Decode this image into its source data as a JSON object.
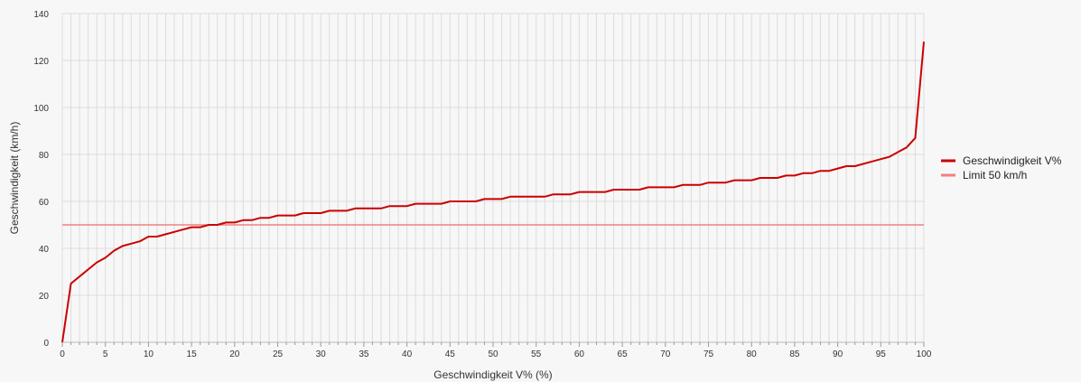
{
  "chart_data": {
    "type": "line",
    "title": "",
    "xlabel": "Geschwindigkeit V% (%)",
    "ylabel": "Geschwindigkeit (km/h)",
    "xlim": [
      0,
      100
    ],
    "ylim": [
      0,
      140
    ],
    "x_ticks": [
      0,
      5,
      10,
      15,
      20,
      25,
      30,
      35,
      40,
      45,
      50,
      55,
      60,
      65,
      70,
      75,
      80,
      85,
      90,
      95,
      100
    ],
    "y_ticks": [
      0,
      20,
      40,
      60,
      80,
      100,
      120,
      140
    ],
    "grid": true,
    "legend_position": "right",
    "series": [
      {
        "name": "Geschwindigkeit V%",
        "color": "#cc0000",
        "x": [
          0,
          1,
          2,
          3,
          4,
          5,
          6,
          7,
          8,
          9,
          10,
          11,
          12,
          13,
          14,
          15,
          16,
          17,
          18,
          19,
          20,
          21,
          22,
          23,
          24,
          25,
          26,
          27,
          28,
          29,
          30,
          31,
          32,
          33,
          34,
          35,
          36,
          37,
          38,
          39,
          40,
          41,
          42,
          43,
          44,
          45,
          46,
          47,
          48,
          49,
          50,
          51,
          52,
          53,
          54,
          55,
          56,
          57,
          58,
          59,
          60,
          61,
          62,
          63,
          64,
          65,
          66,
          67,
          68,
          69,
          70,
          71,
          72,
          73,
          74,
          75,
          76,
          77,
          78,
          79,
          80,
          81,
          82,
          83,
          84,
          85,
          86,
          87,
          88,
          89,
          90,
          91,
          92,
          93,
          94,
          95,
          96,
          97,
          98,
          99,
          100
        ],
        "values": [
          0,
          25,
          28,
          31,
          34,
          36,
          39,
          41,
          42,
          43,
          45,
          45,
          46,
          47,
          48,
          49,
          49,
          50,
          50,
          51,
          51,
          52,
          52,
          53,
          53,
          54,
          54,
          54,
          55,
          55,
          55,
          56,
          56,
          56,
          57,
          57,
          57,
          57,
          58,
          58,
          58,
          59,
          59,
          59,
          59,
          60,
          60,
          60,
          60,
          61,
          61,
          61,
          62,
          62,
          62,
          62,
          62,
          63,
          63,
          63,
          64,
          64,
          64,
          64,
          65,
          65,
          65,
          65,
          66,
          66,
          66,
          66,
          67,
          67,
          67,
          68,
          68,
          68,
          69,
          69,
          69,
          70,
          70,
          70,
          71,
          71,
          72,
          72,
          73,
          73,
          74,
          75,
          75,
          76,
          77,
          78,
          79,
          81,
          83,
          87,
          128
        ]
      },
      {
        "name": "Limit 50 km/h",
        "color": "#f08080",
        "x": [
          0,
          100
        ],
        "values": [
          50,
          50
        ]
      }
    ]
  }
}
